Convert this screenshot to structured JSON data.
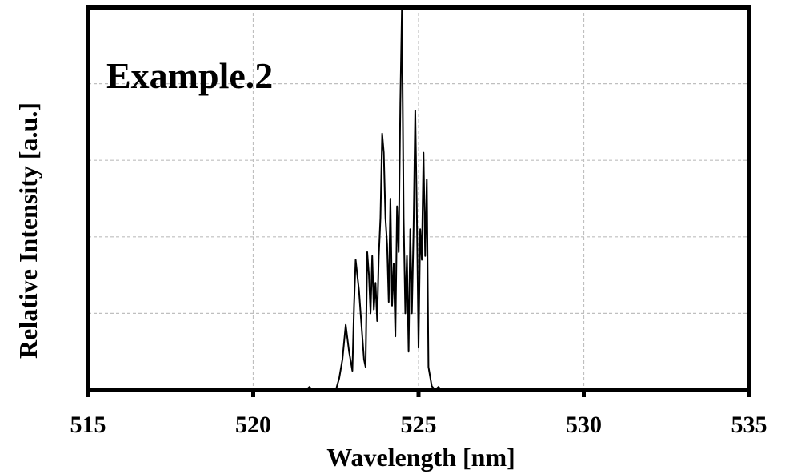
{
  "chart_data": {
    "type": "line",
    "title": "",
    "annotation": "Example.2",
    "xlabel": "Wavelength [nm]",
    "ylabel": "Relative Intensity [a.u.]",
    "xlim": [
      515,
      535
    ],
    "ylim": [
      0,
      1
    ],
    "xticks": [
      515,
      520,
      525,
      530,
      535
    ],
    "xtick_labels": [
      "515",
      "520",
      "525",
      "530",
      "535"
    ],
    "yticks": [
      0,
      0.2,
      0.4,
      0.6,
      0.8,
      1.0
    ],
    "grid": true,
    "series": [
      {
        "color": "#000000",
        "x": [
          515,
          521.6,
          521.7,
          521.8,
          522.5,
          522.6,
          522.7,
          522.8,
          522.9,
          523.0,
          523.05,
          523.1,
          523.2,
          523.25,
          523.3,
          523.35,
          523.4,
          523.45,
          523.5,
          523.55,
          523.6,
          523.65,
          523.7,
          523.75,
          523.8,
          523.85,
          523.9,
          523.95,
          524.0,
          524.05,
          524.1,
          524.15,
          524.2,
          524.25,
          524.3,
          524.35,
          524.4,
          524.45,
          524.5,
          524.55,
          524.6,
          524.65,
          524.7,
          524.75,
          524.8,
          524.85,
          524.9,
          524.95,
          525.0,
          525.05,
          525.1,
          525.15,
          525.2,
          525.25,
          525.3,
          525.4,
          525.5,
          525.6,
          525.7,
          535
        ],
        "y": [
          0,
          0,
          0.008,
          0,
          0,
          0.03,
          0.08,
          0.17,
          0.1,
          0.05,
          0.22,
          0.34,
          0.26,
          0.2,
          0.14,
          0.08,
          0.06,
          0.36,
          0.3,
          0.2,
          0.35,
          0.21,
          0.28,
          0.18,
          0.35,
          0.45,
          0.67,
          0.62,
          0.45,
          0.38,
          0.23,
          0.5,
          0.22,
          0.33,
          0.14,
          0.48,
          0.36,
          0.75,
          1.0,
          0.45,
          0.2,
          0.35,
          0.1,
          0.42,
          0.2,
          0.42,
          0.73,
          0.46,
          0.11,
          0.42,
          0.34,
          0.62,
          0.35,
          0.55,
          0.06,
          0.01,
          0,
          0.008,
          0,
          0
        ]
      }
    ]
  }
}
